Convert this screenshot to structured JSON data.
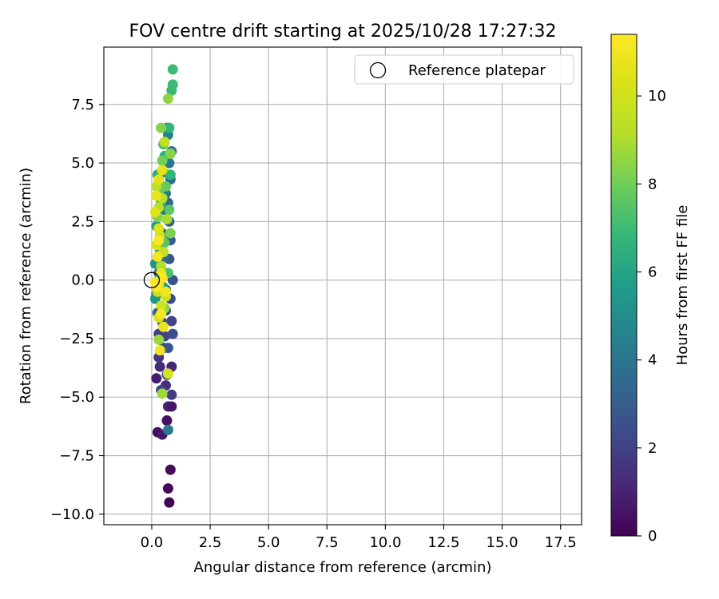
{
  "chart_data": {
    "type": "scatter",
    "title": "FOV centre drift starting at 2025/10/28 17:27:32",
    "xlabel": "Angular distance from reference (arcmin)",
    "ylabel": "Rotation from reference (arcmin)",
    "xlim": [
      -2.05,
      18.4
    ],
    "ylim": [
      -10.45,
      9.95
    ],
    "xticks": [
      0.0,
      2.5,
      5.0,
      7.5,
      10.0,
      12.5,
      15.0,
      17.5
    ],
    "xtick_labels": [
      "0.0",
      "2.5",
      "5.0",
      "7.5",
      "10.0",
      "12.5",
      "15.0",
      "17.5"
    ],
    "yticks": [
      -10.0,
      -7.5,
      -5.0,
      -2.5,
      0.0,
      2.5,
      5.0,
      7.5
    ],
    "ytick_labels": [
      "−10.0",
      "−7.5",
      "−5.0",
      "−2.5",
      "0.0",
      "2.5",
      "5.0",
      "7.5"
    ],
    "grid": true,
    "legend": {
      "position": "top-right",
      "entries": [
        "Reference platepar"
      ]
    },
    "reference_point": {
      "x": 0.0,
      "y": 0.0,
      "label": "Reference platepar"
    },
    "colorbar": {
      "label": "Hours from first FF file",
      "range": [
        0,
        11.4
      ],
      "ticks": [
        0,
        2,
        4,
        6,
        8,
        10
      ],
      "tick_labels": [
        "0",
        "2",
        "4",
        "6",
        "8",
        "10"
      ],
      "colormap": "viridis"
    },
    "points": [
      {
        "x": 0.75,
        "y": -9.5,
        "h": 0.1
      },
      {
        "x": 0.7,
        "y": -8.9,
        "h": 0.2
      },
      {
        "x": 0.8,
        "y": -8.1,
        "h": 0.3
      },
      {
        "x": 0.25,
        "y": -6.5,
        "h": 0.4
      },
      {
        "x": 0.45,
        "y": -6.6,
        "h": 0.6
      },
      {
        "x": 0.65,
        "y": -6.0,
        "h": 0.5
      },
      {
        "x": 0.2,
        "y": -4.2,
        "h": 0.8
      },
      {
        "x": 0.7,
        "y": -5.4,
        "h": 1.0
      },
      {
        "x": 0.85,
        "y": -5.4,
        "h": 0.6
      },
      {
        "x": 0.35,
        "y": -3.7,
        "h": 1.2
      },
      {
        "x": 0.6,
        "y": -4.5,
        "h": 1.4
      },
      {
        "x": 0.85,
        "y": -3.7,
        "h": 1.1
      },
      {
        "x": 0.85,
        "y": -4.9,
        "h": 1.8
      },
      {
        "x": 0.4,
        "y": -4.7,
        "h": 2.2
      },
      {
        "x": 0.65,
        "y": -4.05,
        "h": 2.6
      },
      {
        "x": 0.3,
        "y": -3.3,
        "h": 1.6
      },
      {
        "x": 0.5,
        "y": -2.9,
        "h": 2.2
      },
      {
        "x": 0.7,
        "y": -2.9,
        "h": 2.8
      },
      {
        "x": 0.3,
        "y": -2.3,
        "h": 1.9
      },
      {
        "x": 0.55,
        "y": -2.4,
        "h": 2.0
      },
      {
        "x": 0.9,
        "y": -2.3,
        "h": 2.4
      },
      {
        "x": 0.85,
        "y": -1.75,
        "h": 2.1
      },
      {
        "x": 0.6,
        "y": -1.3,
        "h": 2.5
      },
      {
        "x": 0.25,
        "y": -1.4,
        "h": 3.0
      },
      {
        "x": 0.45,
        "y": -1.8,
        "h": 2.7
      },
      {
        "x": 0.8,
        "y": -0.8,
        "h": 2.3
      },
      {
        "x": 0.2,
        "y": -0.6,
        "h": 3.2
      },
      {
        "x": 0.9,
        "y": 0.0,
        "h": 2.6
      },
      {
        "x": 0.6,
        "y": -0.4,
        "h": 3.4
      },
      {
        "x": 0.3,
        "y": 0.3,
        "h": 3.0
      },
      {
        "x": 0.75,
        "y": 0.9,
        "h": 2.8
      },
      {
        "x": 0.5,
        "y": 1.0,
        "h": 3.6
      },
      {
        "x": 0.8,
        "y": 1.7,
        "h": 2.9
      },
      {
        "x": 0.45,
        "y": 2.0,
        "h": 3.3
      },
      {
        "x": 0.75,
        "y": 2.5,
        "h": 3.1
      },
      {
        "x": 0.55,
        "y": 3.0,
        "h": 3.8
      },
      {
        "x": 0.7,
        "y": 3.3,
        "h": 3.5
      },
      {
        "x": 0.6,
        "y": 3.7,
        "h": 4.1
      },
      {
        "x": 0.8,
        "y": 4.3,
        "h": 3.7
      },
      {
        "x": 0.5,
        "y": 4.6,
        "h": 4.4
      },
      {
        "x": 0.75,
        "y": 5.0,
        "h": 4.0
      },
      {
        "x": 0.85,
        "y": 5.5,
        "h": 3.9
      },
      {
        "x": 0.7,
        "y": 6.2,
        "h": 4.5
      },
      {
        "x": 0.65,
        "y": 6.5,
        "h": 4.7
      },
      {
        "x": 0.7,
        "y": -6.4,
        "h": 4.2
      },
      {
        "x": 0.15,
        "y": 0.7,
        "h": 5.3
      },
      {
        "x": 0.35,
        "y": 1.3,
        "h": 5.6
      },
      {
        "x": 0.2,
        "y": 2.3,
        "h": 5.8
      },
      {
        "x": 0.4,
        "y": 3.3,
        "h": 6.2
      },
      {
        "x": 0.25,
        "y": 4.5,
        "h": 6.4
      },
      {
        "x": 0.55,
        "y": 5.3,
        "h": 6.6
      },
      {
        "x": 0.8,
        "y": 4.5,
        "h": 6.8
      },
      {
        "x": 0.75,
        "y": 6.5,
        "h": 6.7
      },
      {
        "x": 0.85,
        "y": 8.1,
        "h": 6.9
      },
      {
        "x": 0.9,
        "y": 8.35,
        "h": 7.0
      },
      {
        "x": 0.9,
        "y": 9.0,
        "h": 7.0
      },
      {
        "x": 0.5,
        "y": 5.8,
        "h": 7.2
      },
      {
        "x": 0.15,
        "y": -0.8,
        "h": 5.5
      },
      {
        "x": 0.5,
        "y": -0.3,
        "h": 6.0
      },
      {
        "x": 0.3,
        "y": 0.0,
        "h": 6.3
      },
      {
        "x": 0.7,
        "y": 0.3,
        "h": 7.3
      },
      {
        "x": 0.55,
        "y": 1.6,
        "h": 7.5
      },
      {
        "x": 0.75,
        "y": 3.0,
        "h": 7.6
      },
      {
        "x": 0.6,
        "y": 4.0,
        "h": 7.8
      },
      {
        "x": 0.35,
        "y": 3.9,
        "h": 7.9
      },
      {
        "x": 0.45,
        "y": 5.1,
        "h": 8.0
      },
      {
        "x": 0.8,
        "y": 2.0,
        "h": 8.2
      },
      {
        "x": 0.25,
        "y": 2.7,
        "h": 8.3
      },
      {
        "x": 0.4,
        "y": 6.5,
        "h": 8.3
      },
      {
        "x": 0.8,
        "y": 5.4,
        "h": 8.4
      },
      {
        "x": 0.7,
        "y": 7.75,
        "h": 8.5
      },
      {
        "x": 0.2,
        "y": -0.3,
        "h": 8.6
      },
      {
        "x": 0.55,
        "y": -1.2,
        "h": 8.5
      },
      {
        "x": 0.3,
        "y": -2.55,
        "h": 8.7
      },
      {
        "x": 0.45,
        "y": -4.85,
        "h": 8.8
      },
      {
        "x": 0.65,
        "y": 2.6,
        "h": 8.9
      },
      {
        "x": 0.4,
        "y": 0.6,
        "h": 9.0
      },
      {
        "x": 0.3,
        "y": 3.1,
        "h": 9.2
      },
      {
        "x": 0.45,
        "y": 3.5,
        "h": 9.3
      },
      {
        "x": 0.2,
        "y": 4.0,
        "h": 9.4
      },
      {
        "x": 0.55,
        "y": 5.9,
        "h": 9.5
      },
      {
        "x": 0.35,
        "y": 1.9,
        "h": 9.6
      },
      {
        "x": 0.5,
        "y": 1.2,
        "h": 9.7
      },
      {
        "x": 0.25,
        "y": -0.5,
        "h": 9.8
      },
      {
        "x": 0.4,
        "y": -1.1,
        "h": 9.9
      },
      {
        "x": 0.6,
        "y": -0.7,
        "h": 10.0
      },
      {
        "x": 0.3,
        "y": -1.6,
        "h": 10.1
      },
      {
        "x": 0.7,
        "y": -4.0,
        "h": 10.2
      },
      {
        "x": 0.2,
        "y": 1.5,
        "h": 10.3
      },
      {
        "x": 0.15,
        "y": 2.9,
        "h": 10.4
      },
      {
        "x": 0.3,
        "y": 2.2,
        "h": 10.5
      },
      {
        "x": 0.45,
        "y": 4.7,
        "h": 10.6
      },
      {
        "x": 0.3,
        "y": 4.3,
        "h": 10.6
      },
      {
        "x": 0.2,
        "y": 3.6,
        "h": 10.7
      },
      {
        "x": 0.4,
        "y": 0.3,
        "h": 10.8
      },
      {
        "x": 0.3,
        "y": -0.2,
        "h": 10.8
      },
      {
        "x": 0.5,
        "y": -2.0,
        "h": 10.9
      },
      {
        "x": 0.35,
        "y": -3.0,
        "h": 11.0
      },
      {
        "x": 0.6,
        "y": -0.5,
        "h": 11.0
      },
      {
        "x": 0.25,
        "y": 1.0,
        "h": 11.1
      },
      {
        "x": 0.4,
        "y": -1.45,
        "h": 11.2
      },
      {
        "x": 0.15,
        "y": -0.1,
        "h": 11.2
      },
      {
        "x": 0.3,
        "y": 1.7,
        "h": 11.3
      },
      {
        "x": 0.45,
        "y": 0.1,
        "h": 11.3
      },
      {
        "x": 0.2,
        "y": -0.3,
        "h": 11.4
      }
    ]
  }
}
